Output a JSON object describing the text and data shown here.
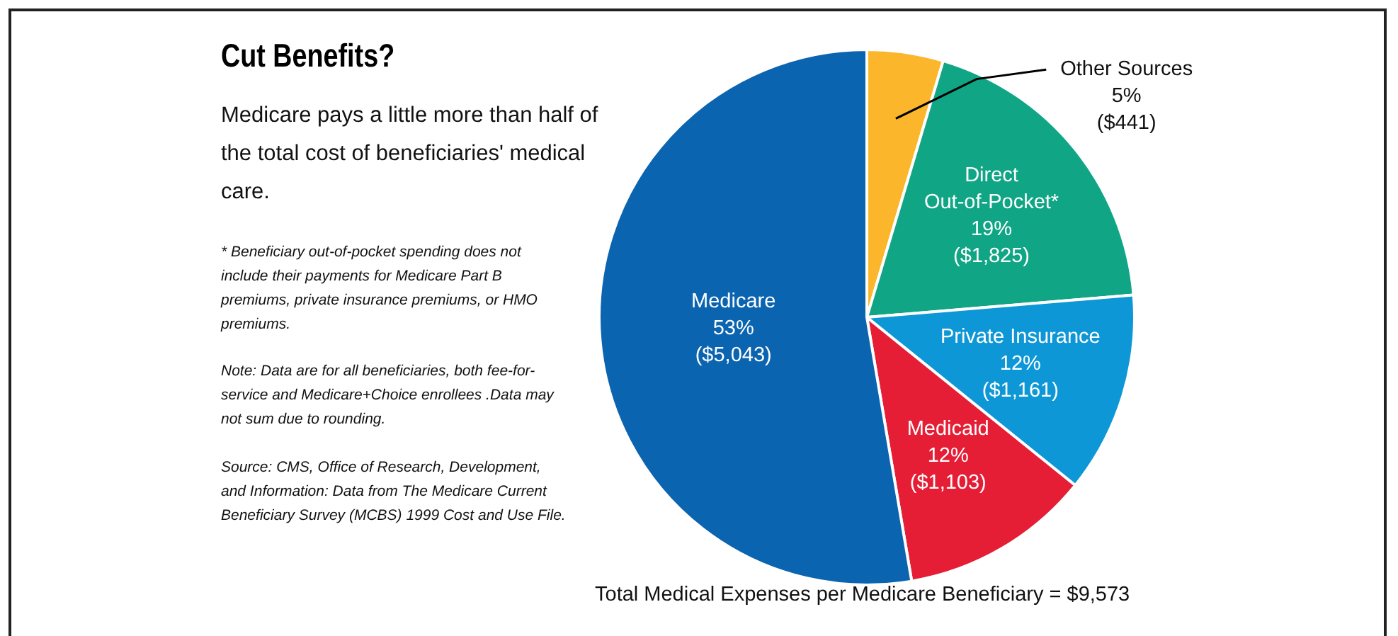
{
  "chart_data": {
    "type": "pie",
    "title": "Cut Benefits?",
    "subtitle": "Medicare pays a little more than half of the total cost of beneficiaries' medical care.",
    "categories": [
      "Other Sources",
      "Direct Out-of-Pocket*",
      "Private Insurance",
      "Medicaid",
      "Medicare"
    ],
    "values": [
      441,
      1825,
      1161,
      1103,
      5043
    ],
    "value_labels": [
      "5%\n($441)",
      "19%\n($1,825)",
      "12%\n($1,161)",
      "12%\n($1,103)",
      "53%\n($5,043)"
    ],
    "colors": [
      "#fbb62b",
      "#10a585",
      "#0e97d6",
      "#e51e36",
      "#0a64b0"
    ],
    "legend": false,
    "annotations": [
      "* Beneficiary out-of-pocket spending does not include their payments for Medicare Part B premiums, private insurance premiums, or HMO premiums.",
      "Note: Data are for all beneficiaries, both fee-for-service and Medicare+Choice enrollees .Data may not sum due to rounding.",
      "Source: CMS, Office of Research, Development, and Information: Data from The Medicare Current Beneficiary Survey (MCBS) 1999 Cost and Use File.",
      "Total Medical Expenses per Medicare Beneficiary = $9,573"
    ]
  }
}
